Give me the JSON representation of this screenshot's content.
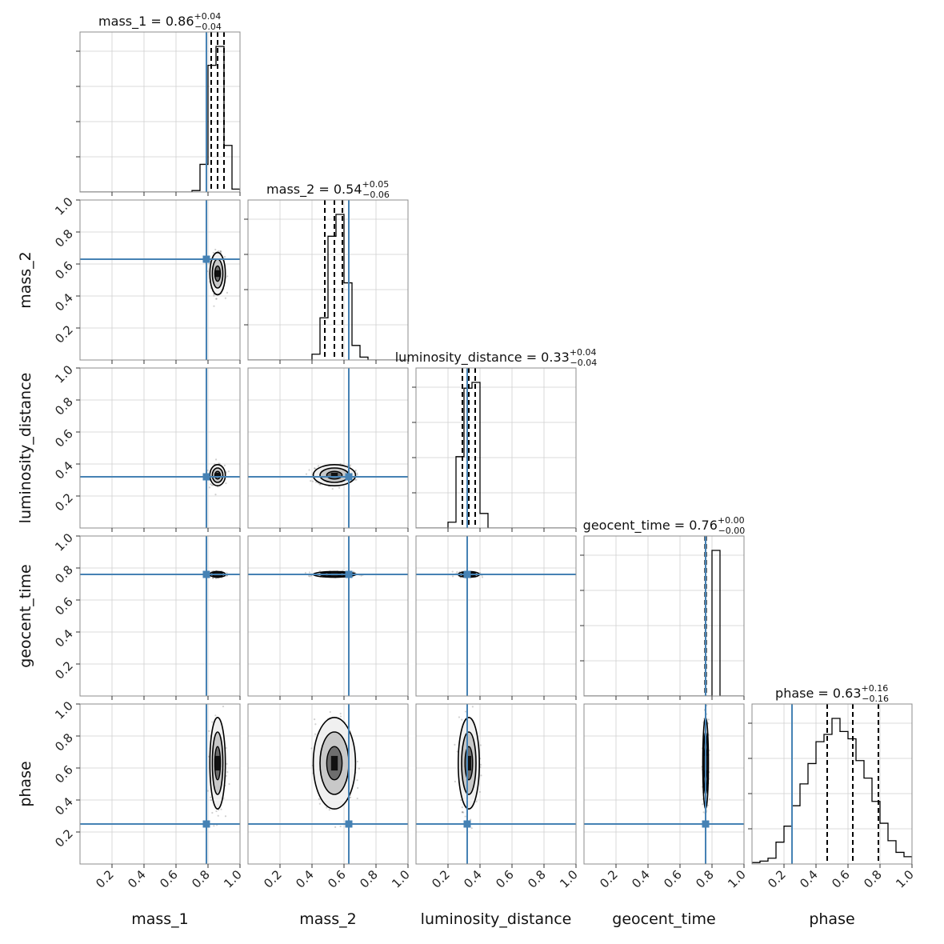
{
  "chart_data": {
    "type": "corner",
    "parameters": [
      "mass_1",
      "mass_2",
      "luminosity_distance",
      "geocent_time",
      "phase"
    ],
    "truths": [
      0.79,
      0.63,
      0.32,
      0.76,
      0.25
    ],
    "titles": [
      {
        "label": "mass_1 = 0.86",
        "plus": "+0.04",
        "minus": "−0.04"
      },
      {
        "label": "mass_2 = 0.54",
        "plus": "+0.05",
        "minus": "−0.06"
      },
      {
        "label": "luminosity_distance = 0.33",
        "plus": "+0.04",
        "minus": "−0.04"
      },
      {
        "label": "geocent_time = 0.76",
        "plus": "+0.00",
        "minus": "−0.00"
      },
      {
        "label": "phase = 0.63",
        "plus": "+0.16",
        "minus": "−0.16"
      }
    ],
    "medians": [
      0.86,
      0.54,
      0.33,
      0.76,
      0.63
    ],
    "quantiles": [
      [
        0.82,
        0.9
      ],
      [
        0.48,
        0.59
      ],
      [
        0.29,
        0.37
      ],
      [
        0.757,
        0.763
      ],
      [
        0.47,
        0.79
      ]
    ],
    "posterior_sigma": [
      0.022,
      0.06,
      0.03,
      0.008,
      0.13
    ],
    "axis_range": [
      0,
      1
    ],
    "tick_values": [
      0.2,
      0.4,
      0.6,
      0.8,
      1.0
    ],
    "tick_labels": [
      "0.2",
      "0.4",
      "0.6",
      "0.8",
      "1.0"
    ],
    "bins": 20,
    "histograms": [
      [
        0,
        0,
        0,
        0,
        0,
        0,
        0,
        0,
        0,
        0,
        0,
        0,
        0,
        0,
        0.01,
        0.19,
        0.87,
        1.0,
        0.32,
        0.02
      ],
      [
        0,
        0,
        0,
        0,
        0,
        0,
        0,
        0,
        0.04,
        0.29,
        0.85,
        1.0,
        0.53,
        0.1,
        0.02,
        0,
        0,
        0,
        0,
        0
      ],
      [
        0,
        0,
        0,
        0,
        0.04,
        0.49,
        0.96,
        1.0,
        0.1,
        0,
        0,
        0,
        0,
        0,
        0,
        0,
        0,
        0,
        0,
        0
      ],
      [
        0,
        0,
        0,
        0,
        0,
        0,
        0,
        0,
        0,
        0,
        0,
        0,
        0,
        0,
        0,
        0,
        1.0,
        0,
        0,
        0
      ],
      [
        0.01,
        0.02,
        0.04,
        0.15,
        0.26,
        0.4,
        0.55,
        0.69,
        0.84,
        0.89,
        1.0,
        0.91,
        0.86,
        0.71,
        0.59,
        0.43,
        0.28,
        0.16,
        0.08,
        0.05
      ]
    ]
  }
}
